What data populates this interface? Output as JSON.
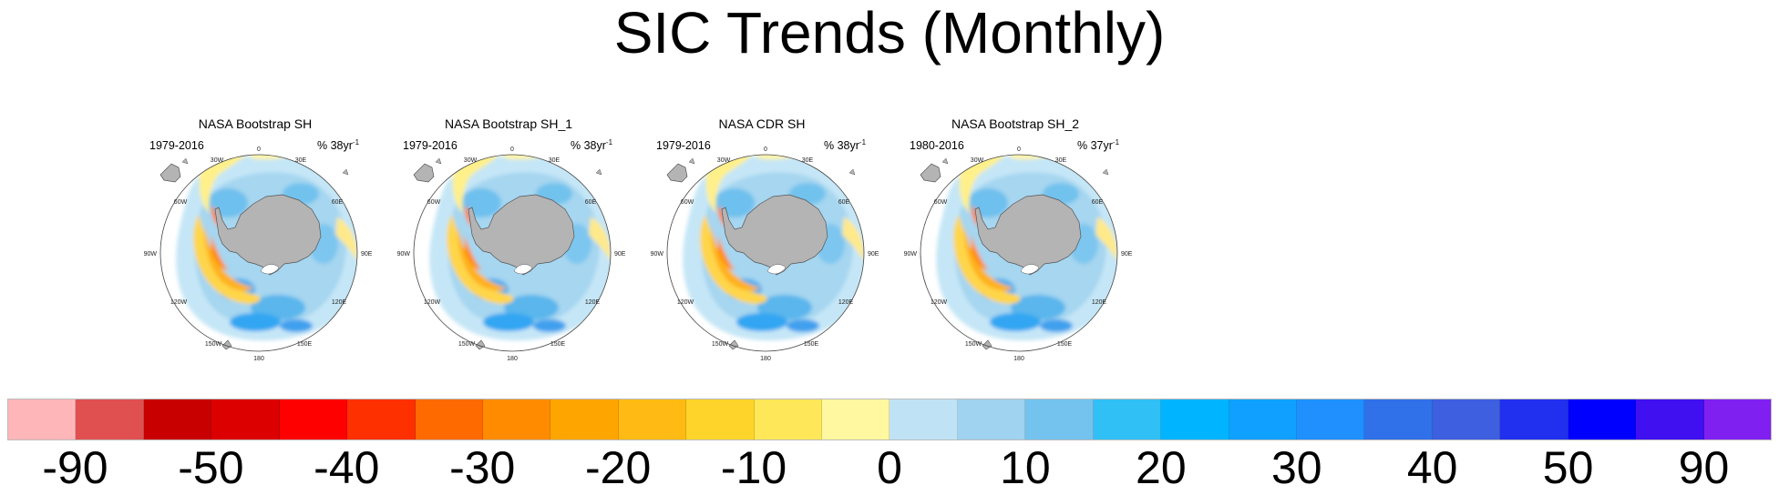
{
  "title": "SIC Trends (Monthly)",
  "panels": [
    {
      "name": "NASA Bootstrap SH",
      "period": "1979-2016",
      "rate_prefix": "% 38yr",
      "rate_sup": "-1"
    },
    {
      "name": "NASA Bootstrap SH_1",
      "period": "1979-2016",
      "rate_prefix": "% 38yr",
      "rate_sup": "-1"
    },
    {
      "name": "NASA CDR SH",
      "period": "1979-2016",
      "rate_prefix": "% 38yr",
      "rate_sup": "-1"
    },
    {
      "name": "NASA Bootstrap SH_2",
      "period": "1980-2016",
      "rate_prefix": "% 37yr",
      "rate_sup": "-1"
    }
  ],
  "map_labels": {
    "top": "0",
    "bottom": "180",
    "tl1": "30W",
    "tl2": "60W",
    "left": "90W",
    "bl1": "120W",
    "bl2": "150W",
    "tr1": "30E",
    "tr2": "60E",
    "right": "90E",
    "br1": "120E",
    "br2": "150E"
  },
  "colors": {
    "land": "#b4b4b4",
    "ocean": "#ffffff",
    "colorbar": [
      "#ffb6b9",
      "#e05050",
      "#c80000",
      "#dc0000",
      "#ff0000",
      "#ff3000",
      "#ff6a00",
      "#ff8c00",
      "#ffa500",
      "#ffbb14",
      "#ffd42a",
      "#ffe75a",
      "#fff8a0",
      "#bfe3f5",
      "#9fd3ef",
      "#73c3ee",
      "#30c0f5",
      "#00b4ff",
      "#10a0ff",
      "#2090ff",
      "#3070e8",
      "#3d5fe0",
      "#2030ee",
      "#0000ff",
      "#4010f0",
      "#8020f0"
    ]
  },
  "colorbar_labels": [
    {
      "text": "-90",
      "pos": 1
    },
    {
      "text": "-50",
      "pos": 3
    },
    {
      "text": "-40",
      "pos": 5
    },
    {
      "text": "-30",
      "pos": 7
    },
    {
      "text": "-20",
      "pos": 9
    },
    {
      "text": "-10",
      "pos": 11
    },
    {
      "text": "0",
      "pos": 13
    },
    {
      "text": "10",
      "pos": 15
    },
    {
      "text": "20",
      "pos": 17
    },
    {
      "text": "30",
      "pos": 19
    },
    {
      "text": "40",
      "pos": 21
    },
    {
      "text": "50",
      "pos": 23
    },
    {
      "text": "90",
      "pos": 25
    }
  ]
}
